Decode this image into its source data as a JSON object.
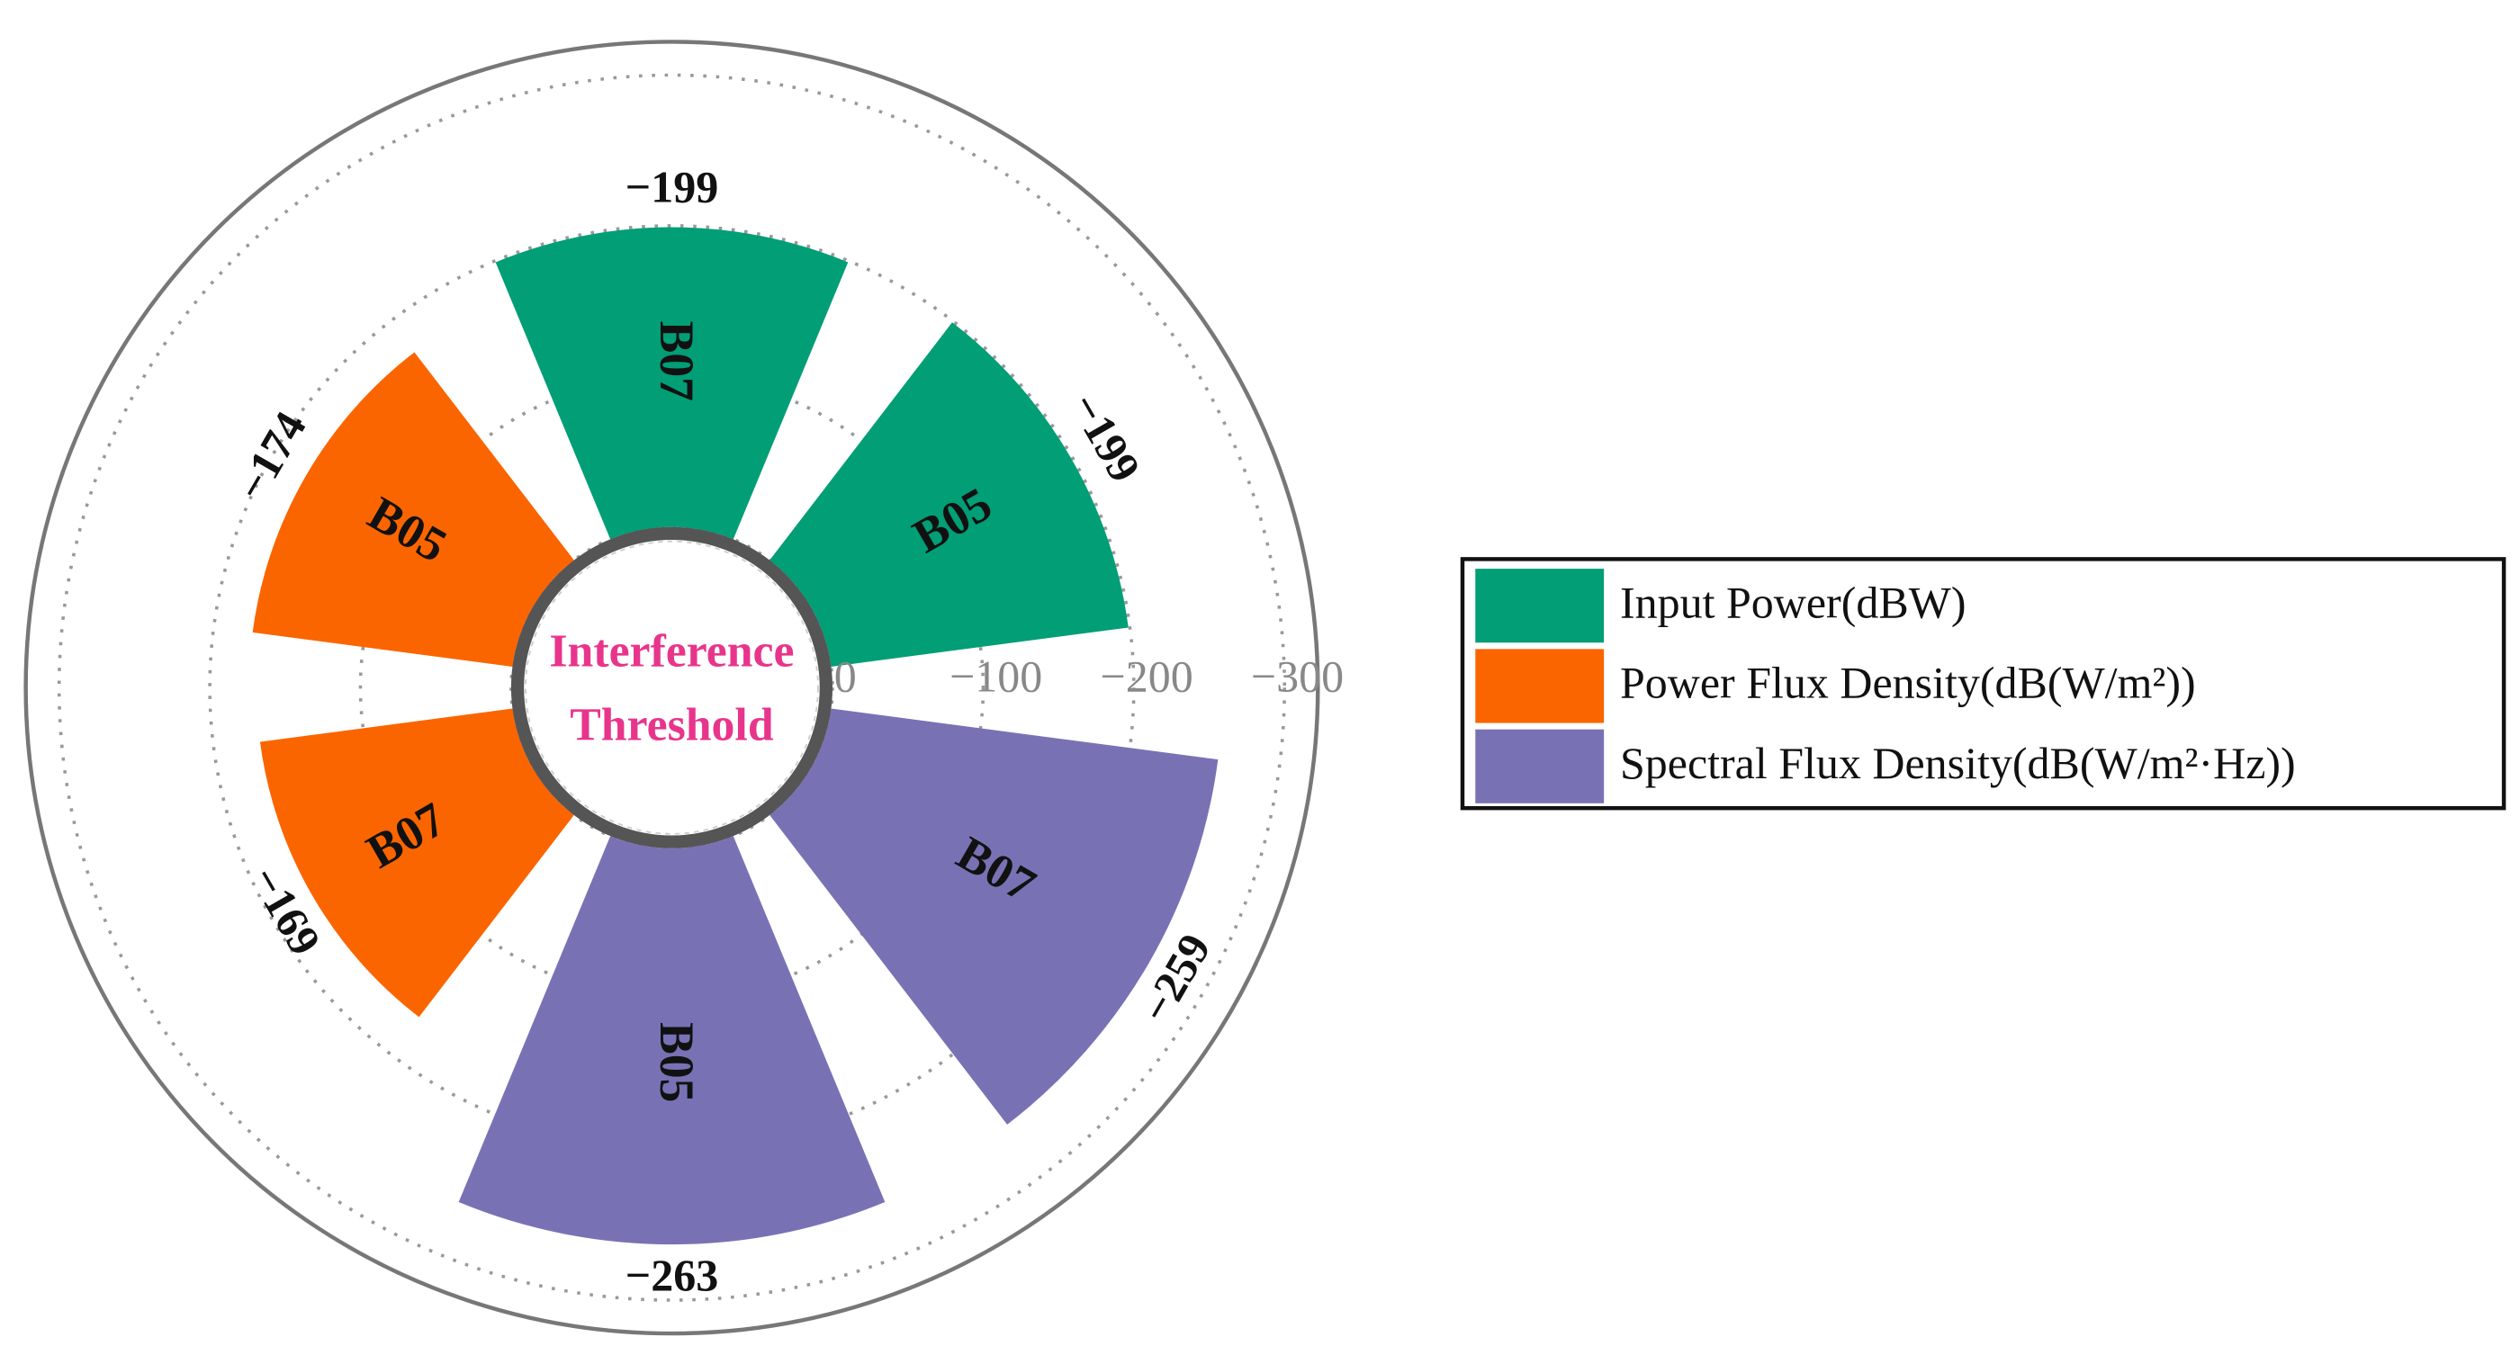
{
  "chart_data": {
    "type": "polar-bar",
    "annotation": [
      "Interference",
      "Threshold"
    ],
    "ylim": [
      0,
      -320
    ],
    "yticks": [
      {
        "value": 0,
        "label": "0"
      },
      {
        "value": -100,
        "label": "−100"
      },
      {
        "value": -200,
        "label": "−200"
      },
      {
        "value": -300,
        "label": "−300"
      }
    ],
    "grid": true,
    "legend": "right",
    "series": [
      {
        "name": "Input Power(dBW)",
        "color": "#029e76",
        "categories": [
          "B05",
          "B07"
        ],
        "values": [
          -199,
          -199
        ],
        "value_labels": [
          "−199",
          "−199"
        ]
      },
      {
        "name": "Power Flux Density(dB(W/m²))",
        "color": "#fb6500",
        "categories": [
          "B05",
          "B07"
        ],
        "values": [
          -174,
          -169
        ],
        "value_labels": [
          "−174",
          "−169"
        ]
      },
      {
        "name": "Spectral Flux Density(dB(W/m²·Hz))",
        "color": "#7872b5",
        "categories": [
          "B05",
          "B07"
        ],
        "values": [
          -263,
          -259
        ],
        "value_labels": [
          "−263",
          "−259"
        ]
      }
    ]
  }
}
